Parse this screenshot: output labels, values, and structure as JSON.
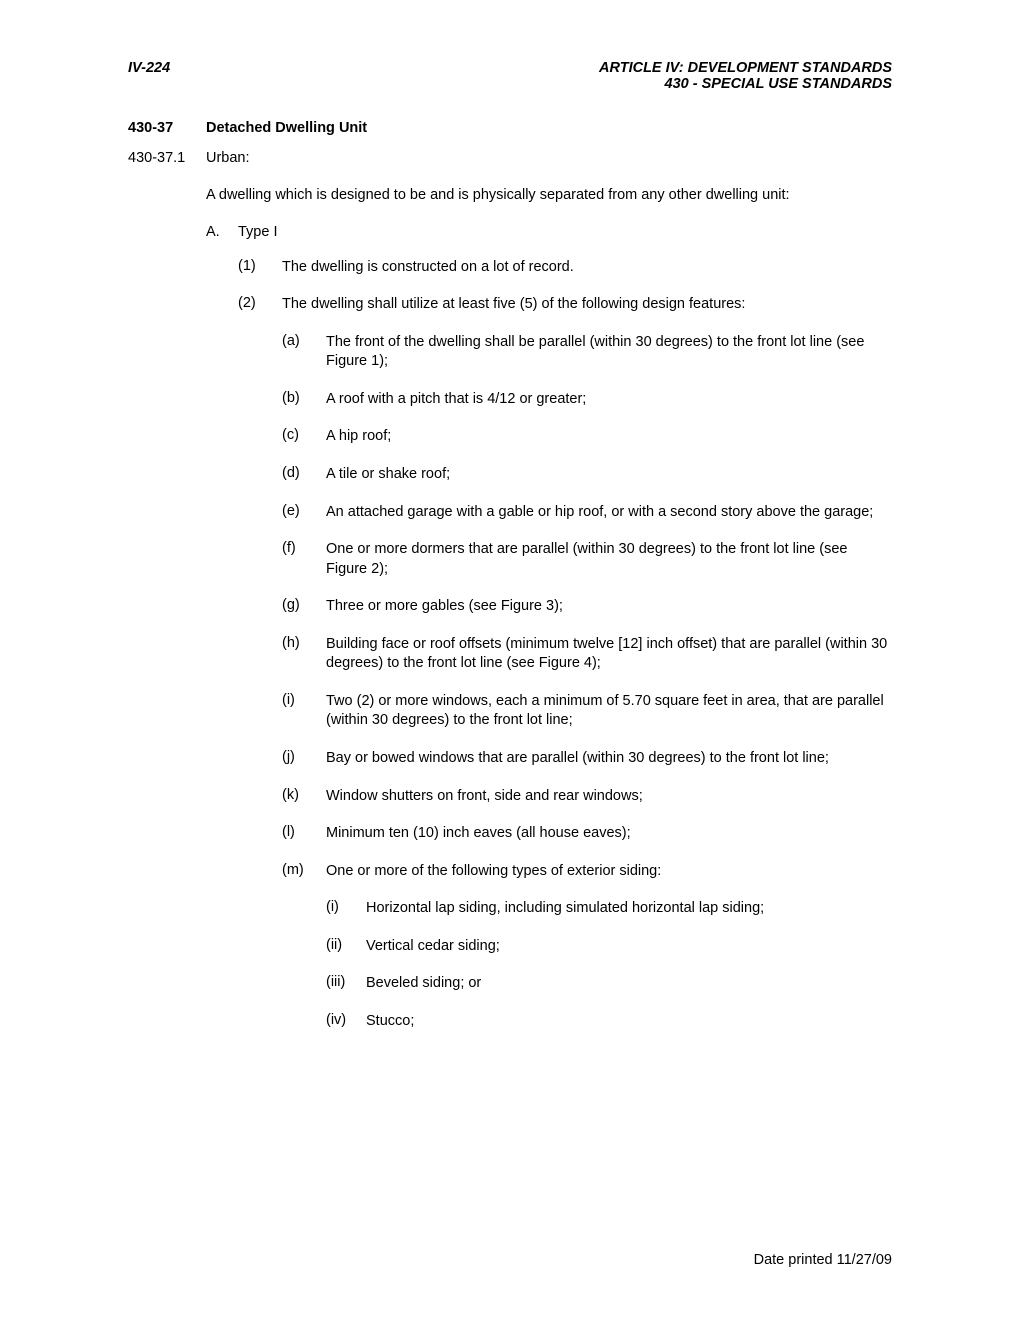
{
  "header": {
    "left": "IV-224",
    "right_line1": "ARTICLE IV:  DEVELOPMENT STANDARDS",
    "right_line2": "430 - SPECIAL USE STANDARDS"
  },
  "section": {
    "number": "430-37",
    "title": "Detached Dwelling Unit"
  },
  "subsection": {
    "number": "430-37.1",
    "label": "Urban:"
  },
  "intro": "A dwelling which is designed to be and is physically separated from any other dwelling unit:",
  "typeA": {
    "marker": "A.",
    "label": "Type I"
  },
  "items": [
    {
      "marker": "(1)",
      "text": "The dwelling is constructed on a lot of record."
    },
    {
      "marker": "(2)",
      "text": "The dwelling shall utilize at least five (5) of the following design features:"
    }
  ],
  "subitems": [
    {
      "marker": "(a)",
      "text": "The front of the dwelling shall be parallel (within 30 degrees) to the front lot line (see Figure 1);"
    },
    {
      "marker": "(b)",
      "text": "A roof with a pitch that is 4/12 or greater;"
    },
    {
      "marker": "(c)",
      "text": "A hip roof;"
    },
    {
      "marker": "(d)",
      "text": "A tile or shake roof;"
    },
    {
      "marker": "(e)",
      "text": "An attached garage with a gable or hip roof, or with a second story above the garage;"
    },
    {
      "marker": "(f)",
      "text": "One or more dormers that are parallel (within 30 degrees) to the front lot line (see Figure 2);"
    },
    {
      "marker": "(g)",
      "text": "Three or more gables (see Figure 3);"
    },
    {
      "marker": "(h)",
      "text": "Building face or roof offsets (minimum twelve [12] inch offset) that are parallel (within 30 degrees) to the front lot line (see Figure 4);"
    },
    {
      "marker": "(i)",
      "text": "Two (2) or more windows, each a minimum of 5.70 square feet in area, that are parallel (within 30 degrees) to the front lot line;"
    },
    {
      "marker": "(j)",
      "text": "Bay or bowed windows that are parallel (within 30 degrees) to the front lot line;"
    },
    {
      "marker": "(k)",
      "text": "Window shutters on front, side and rear windows;"
    },
    {
      "marker": "(l)",
      "text": "Minimum ten (10) inch eaves (all house eaves);"
    },
    {
      "marker": "(m)",
      "text": "One or more of the following types of exterior siding:"
    }
  ],
  "romanitems": [
    {
      "marker": "(i)",
      "text": "Horizontal lap siding, including simulated horizontal lap siding;"
    },
    {
      "marker": "(ii)",
      "text": "Vertical cedar siding;"
    },
    {
      "marker": "(iii)",
      "text": "Beveled siding; or"
    },
    {
      "marker": "(iv)",
      "text": "Stucco;"
    }
  ],
  "footer": "Date printed 11/27/09"
}
